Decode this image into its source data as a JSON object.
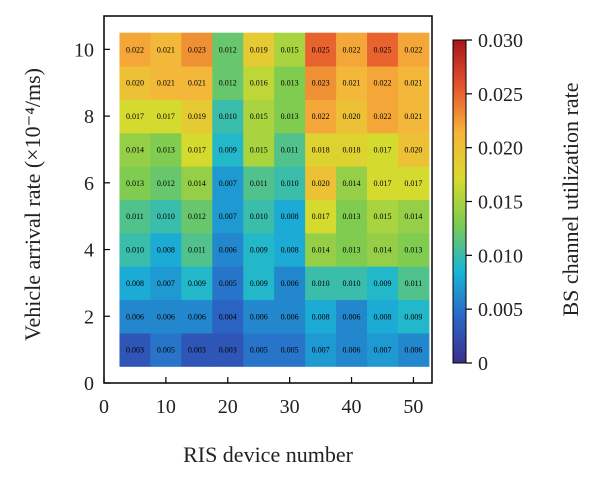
{
  "chart_data": {
    "type": "heatmap",
    "title": "",
    "xlabel": "RIS device number",
    "ylabel": "Vehicle arrival rate (×10⁻⁴/ms)",
    "x": [
      5,
      10,
      15,
      20,
      25,
      30,
      35,
      40,
      45,
      50
    ],
    "y": [
      1,
      2,
      3,
      4,
      5,
      6,
      7,
      8,
      9,
      10
    ],
    "xlim": [
      0,
      53
    ],
    "ylim": [
      0,
      11
    ],
    "xticks": [
      0,
      10,
      20,
      30,
      40,
      50
    ],
    "yticks": [
      0,
      2,
      4,
      6,
      8,
      10
    ],
    "values": [
      [
        0.003,
        0.005,
        0.003,
        0.003,
        0.005,
        0.005,
        0.007,
        0.006,
        0.007,
        0.006
      ],
      [
        0.006,
        0.006,
        0.006,
        0.004,
        0.006,
        0.006,
        0.008,
        0.006,
        0.008,
        0.009
      ],
      [
        0.008,
        0.007,
        0.009,
        0.005,
        0.009,
        0.006,
        0.01,
        0.01,
        0.009,
        0.011
      ],
      [
        0.01,
        0.008,
        0.011,
        0.006,
        0.009,
        0.008,
        0.014,
        0.013,
        0.014,
        0.013
      ],
      [
        0.011,
        0.01,
        0.012,
        0.007,
        0.01,
        0.008,
        0.017,
        0.013,
        0.015,
        0.014
      ],
      [
        0.013,
        0.012,
        0.014,
        0.007,
        0.011,
        0.01,
        0.02,
        0.014,
        0.017,
        0.017
      ],
      [
        0.014,
        0.013,
        0.017,
        0.009,
        0.015,
        0.011,
        0.018,
        0.018,
        0.017,
        0.02
      ],
      [
        0.017,
        0.017,
        0.019,
        0.01,
        0.015,
        0.013,
        0.022,
        0.02,
        0.022,
        0.021
      ],
      [
        0.02,
        0.021,
        0.021,
        0.012,
        0.016,
        0.013,
        0.023,
        0.021,
        0.022,
        0.021
      ],
      [
        0.022,
        0.021,
        0.023,
        0.012,
        0.019,
        0.015,
        0.025,
        0.022,
        0.025,
        0.022
      ]
    ],
    "colorbar": {
      "label": "BS channel utilization rate",
      "range": [
        0,
        0.03
      ],
      "ticks": [
        0,
        0.005,
        0.01,
        0.015,
        0.02,
        0.025,
        0.03
      ],
      "tick_labels": [
        "0",
        "0.005",
        "0.010",
        "0.015",
        "0.020",
        "0.025",
        "0.030"
      ],
      "colormap": [
        "#3b2f8e",
        "#2a67c8",
        "#19b6d6",
        "#7ccb52",
        "#d8da2e",
        "#f6b43a",
        "#e6532c",
        "#a8151c"
      ]
    }
  }
}
